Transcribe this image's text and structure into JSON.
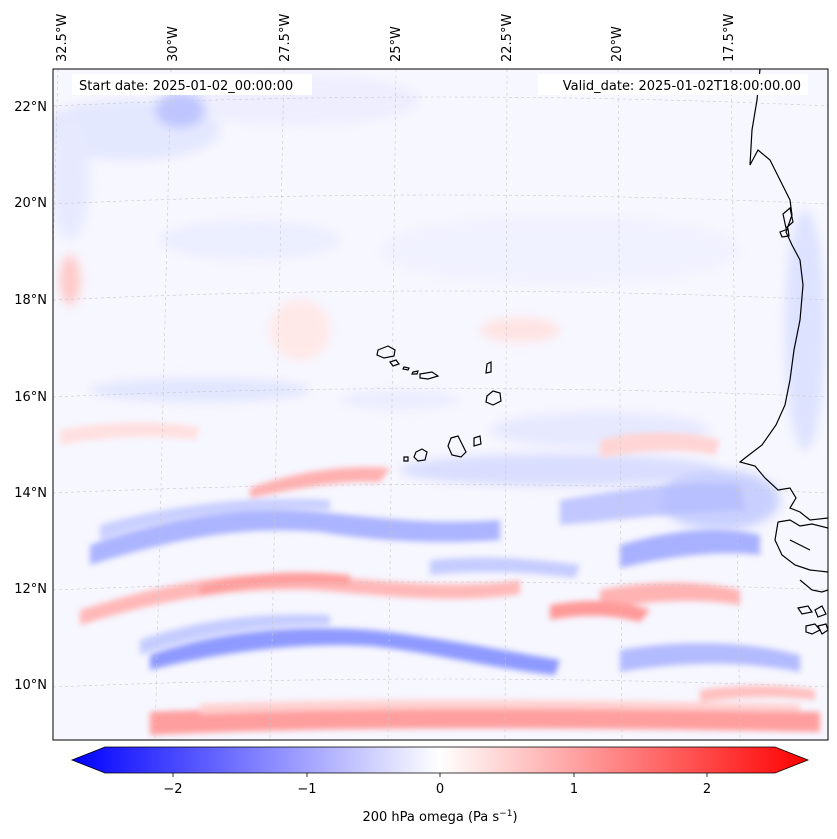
{
  "header": {
    "start_date": "Start date: 2025-01-02_00:00:00",
    "valid_date": "Valid_date: 2025-01-02T18:00:00.00"
  },
  "map": {
    "projection": "lambert-conformal",
    "longitude_labels": [
      "32.5°W",
      "30°W",
      "27.5°W",
      "25°W",
      "22.5°W",
      "20°W",
      "17.5°W"
    ],
    "latitude_labels": [
      "22°N",
      "20°N",
      "18°N",
      "16°N",
      "14°N",
      "12°N",
      "10°N"
    ],
    "gridlines": "dashed, light gray",
    "features": [
      "Cape Verde islands",
      "West African coastline (Senegal, Gambia, Guinea-Bissau)"
    ]
  },
  "field": {
    "variable": "200 hPa omega",
    "colormap": "bwr",
    "colors": {
      "negative": "#0000ff",
      "zero": "#ffffff",
      "positive": "#ff0000"
    },
    "range": [
      -2.5,
      2.5
    ],
    "dominant_pattern": "zonal bands of alternating ascent (blue) and descent (red) south of 15°N; near-neutral north of 16°N"
  },
  "colorbar": {
    "ticks": [
      "−2",
      "−1",
      "0",
      "1",
      "2"
    ],
    "label": "200 hPa omega (Pa s",
    "label_sup": "−1",
    "label_end": ")",
    "extend": "both"
  }
}
